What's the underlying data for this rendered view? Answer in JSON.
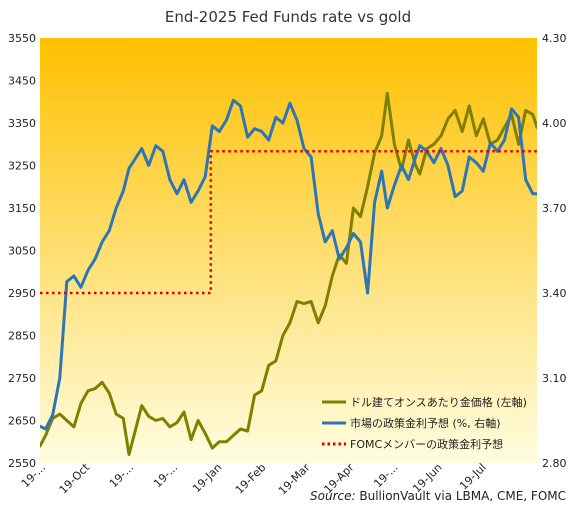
{
  "chart_data": {
    "type": "line",
    "title": "End-2025 Fed Funds rate vs gold",
    "x_tick_labels": [
      "19-...",
      "19-Oct",
      "19-...",
      "19-...",
      "19-Jan",
      "19-Feb",
      "19-Mar",
      "19-Apr",
      "19-...",
      "19-Jun",
      "19-Jul"
    ],
    "x_range": [
      "2024-08-19",
      "2025-08-06"
    ],
    "y_left": {
      "min": 2550,
      "max": 3550,
      "ticks": [
        "2550",
        "2650",
        "2750",
        "2850",
        "2950",
        "3050",
        "3150",
        "3250",
        "3350",
        "3450",
        "3550"
      ]
    },
    "y_right": {
      "min": 2.8,
      "max": 4.3,
      "ticks": [
        "2.80",
        "3.10",
        "3.40",
        "3.70",
        "4.00",
        "4.30"
      ]
    },
    "background": {
      "top": "#ffc000",
      "bottom": "#fffde0"
    },
    "legend": {
      "placement": "bottom-right",
      "entries": [
        {
          "label": "ドル建てオンスあたり金価格 (左軸)",
          "color": "#7f7f00",
          "style": "solid"
        },
        {
          "label": "市場の政策金利予想 (%, 右軸)",
          "color": "#2e75b6",
          "style": "solid"
        },
        {
          "label": "FOMCメンバーの政策金利予想",
          "color": "#e00000",
          "style": "dotted"
        }
      ]
    },
    "series": [
      {
        "name": "ドル建てオンスあたり金価格 (左軸)",
        "axis": "left",
        "color": "#7f7f00",
        "x": [
          "2024-08-19",
          "2024-08-23",
          "2024-08-28",
          "2024-09-02",
          "2024-09-07",
          "2024-09-12",
          "2024-09-17",
          "2024-09-22",
          "2024-09-27",
          "2024-10-02",
          "2024-10-07",
          "2024-10-12",
          "2024-10-17",
          "2024-10-21",
          "2024-10-25",
          "2024-10-30",
          "2024-11-04",
          "2024-11-09",
          "2024-11-14",
          "2024-11-19",
          "2024-11-24",
          "2024-11-29",
          "2024-12-04",
          "2024-12-09",
          "2024-12-14",
          "2024-12-19",
          "2024-12-24",
          "2024-12-29",
          "2025-01-03",
          "2025-01-08",
          "2025-01-13",
          "2025-01-18",
          "2025-01-23",
          "2025-01-28",
          "2025-02-02",
          "2025-02-07",
          "2025-02-12",
          "2025-02-17",
          "2025-02-22",
          "2025-02-27",
          "2025-03-04",
          "2025-03-09",
          "2025-03-14",
          "2025-03-19",
          "2025-03-24",
          "2025-03-29",
          "2025-04-03",
          "2025-04-08",
          "2025-04-13",
          "2025-04-18",
          "2025-04-22",
          "2025-04-27",
          "2025-05-02",
          "2025-05-07",
          "2025-05-12",
          "2025-05-15",
          "2025-05-20",
          "2025-05-25",
          "2025-05-30",
          "2025-06-04",
          "2025-06-09",
          "2025-06-14",
          "2025-06-19",
          "2025-06-24",
          "2025-06-29",
          "2025-07-04",
          "2025-07-09",
          "2025-07-14",
          "2025-07-19",
          "2025-07-24",
          "2025-07-29",
          "2025-08-03",
          "2025-08-06"
        ],
        "values": [
          2590,
          2615,
          2655,
          2665,
          2650,
          2635,
          2690,
          2720,
          2725,
          2740,
          2715,
          2665,
          2655,
          2570,
          2620,
          2685,
          2660,
          2650,
          2655,
          2635,
          2645,
          2670,
          2605,
          2650,
          2620,
          2585,
          2600,
          2600,
          2615,
          2630,
          2625,
          2710,
          2720,
          2780,
          2790,
          2850,
          2880,
          2930,
          2925,
          2930,
          2880,
          2920,
          2990,
          3040,
          3020,
          3150,
          3130,
          3200,
          3280,
          3320,
          3420,
          3300,
          3240,
          3310,
          3250,
          3230,
          3290,
          3300,
          3320,
          3360,
          3380,
          3330,
          3390,
          3320,
          3360,
          3300,
          3310,
          3340,
          3370,
          3300,
          3380,
          3370,
          3340
        ]
      },
      {
        "name": "市場の政策金利予想 (%, 右軸)",
        "axis": "right",
        "color": "#2e75b6",
        "x": [
          "2024-08-19",
          "2024-08-23",
          "2024-08-28",
          "2024-09-02",
          "2024-09-07",
          "2024-09-12",
          "2024-09-17",
          "2024-09-22",
          "2024-09-27",
          "2024-10-02",
          "2024-10-07",
          "2024-10-12",
          "2024-10-17",
          "2024-10-21",
          "2024-10-25",
          "2024-10-30",
          "2024-11-04",
          "2024-11-09",
          "2024-11-14",
          "2024-11-19",
          "2024-11-24",
          "2024-11-29",
          "2024-12-04",
          "2024-12-09",
          "2024-12-14",
          "2024-12-19",
          "2024-12-24",
          "2024-12-29",
          "2025-01-03",
          "2025-01-08",
          "2025-01-13",
          "2025-01-18",
          "2025-01-23",
          "2025-01-28",
          "2025-02-02",
          "2025-02-07",
          "2025-02-12",
          "2025-02-17",
          "2025-02-22",
          "2025-02-27",
          "2025-03-04",
          "2025-03-09",
          "2025-03-14",
          "2025-03-19",
          "2025-03-24",
          "2025-03-29",
          "2025-04-03",
          "2025-04-08",
          "2025-04-13",
          "2025-04-18",
          "2025-04-22",
          "2025-04-27",
          "2025-05-02",
          "2025-05-07",
          "2025-05-12",
          "2025-05-15",
          "2025-05-20",
          "2025-05-25",
          "2025-05-30",
          "2025-06-04",
          "2025-06-09",
          "2025-06-14",
          "2025-06-19",
          "2025-06-24",
          "2025-06-29",
          "2025-07-04",
          "2025-07-09",
          "2025-07-14",
          "2025-07-19",
          "2025-07-24",
          "2025-07-29",
          "2025-08-03",
          "2025-08-06"
        ],
        "values": [
          2.93,
          2.92,
          2.97,
          3.1,
          3.44,
          3.46,
          3.42,
          3.48,
          3.52,
          3.58,
          3.62,
          3.7,
          3.76,
          3.84,
          3.87,
          3.91,
          3.85,
          3.92,
          3.9,
          3.8,
          3.75,
          3.8,
          3.72,
          3.76,
          3.81,
          3.99,
          3.97,
          4.01,
          4.08,
          4.06,
          3.95,
          3.98,
          3.97,
          3.94,
          4.02,
          4.0,
          4.07,
          4.01,
          3.91,
          3.88,
          3.68,
          3.58,
          3.62,
          3.52,
          3.56,
          3.61,
          3.58,
          3.4,
          3.72,
          3.83,
          3.7,
          3.78,
          3.85,
          3.8,
          3.88,
          3.92,
          3.9,
          3.86,
          3.91,
          3.85,
          3.74,
          3.76,
          3.88,
          3.86,
          3.83,
          3.93,
          3.9,
          3.94,
          4.05,
          4.02,
          3.8,
          3.75,
          3.75
        ]
      },
      {
        "name": "FOMCメンバーの政策金利予想",
        "axis": "right",
        "color": "#e00000",
        "step": true,
        "x": [
          "2024-08-19",
          "2024-12-18",
          "2024-12-18",
          "2025-08-06"
        ],
        "values": [
          3.4,
          3.4,
          3.9,
          3.9
        ]
      }
    ]
  },
  "source": {
    "prefix": "Source:",
    "text": " BullionVault via LBMA, CME, FOMC"
  }
}
